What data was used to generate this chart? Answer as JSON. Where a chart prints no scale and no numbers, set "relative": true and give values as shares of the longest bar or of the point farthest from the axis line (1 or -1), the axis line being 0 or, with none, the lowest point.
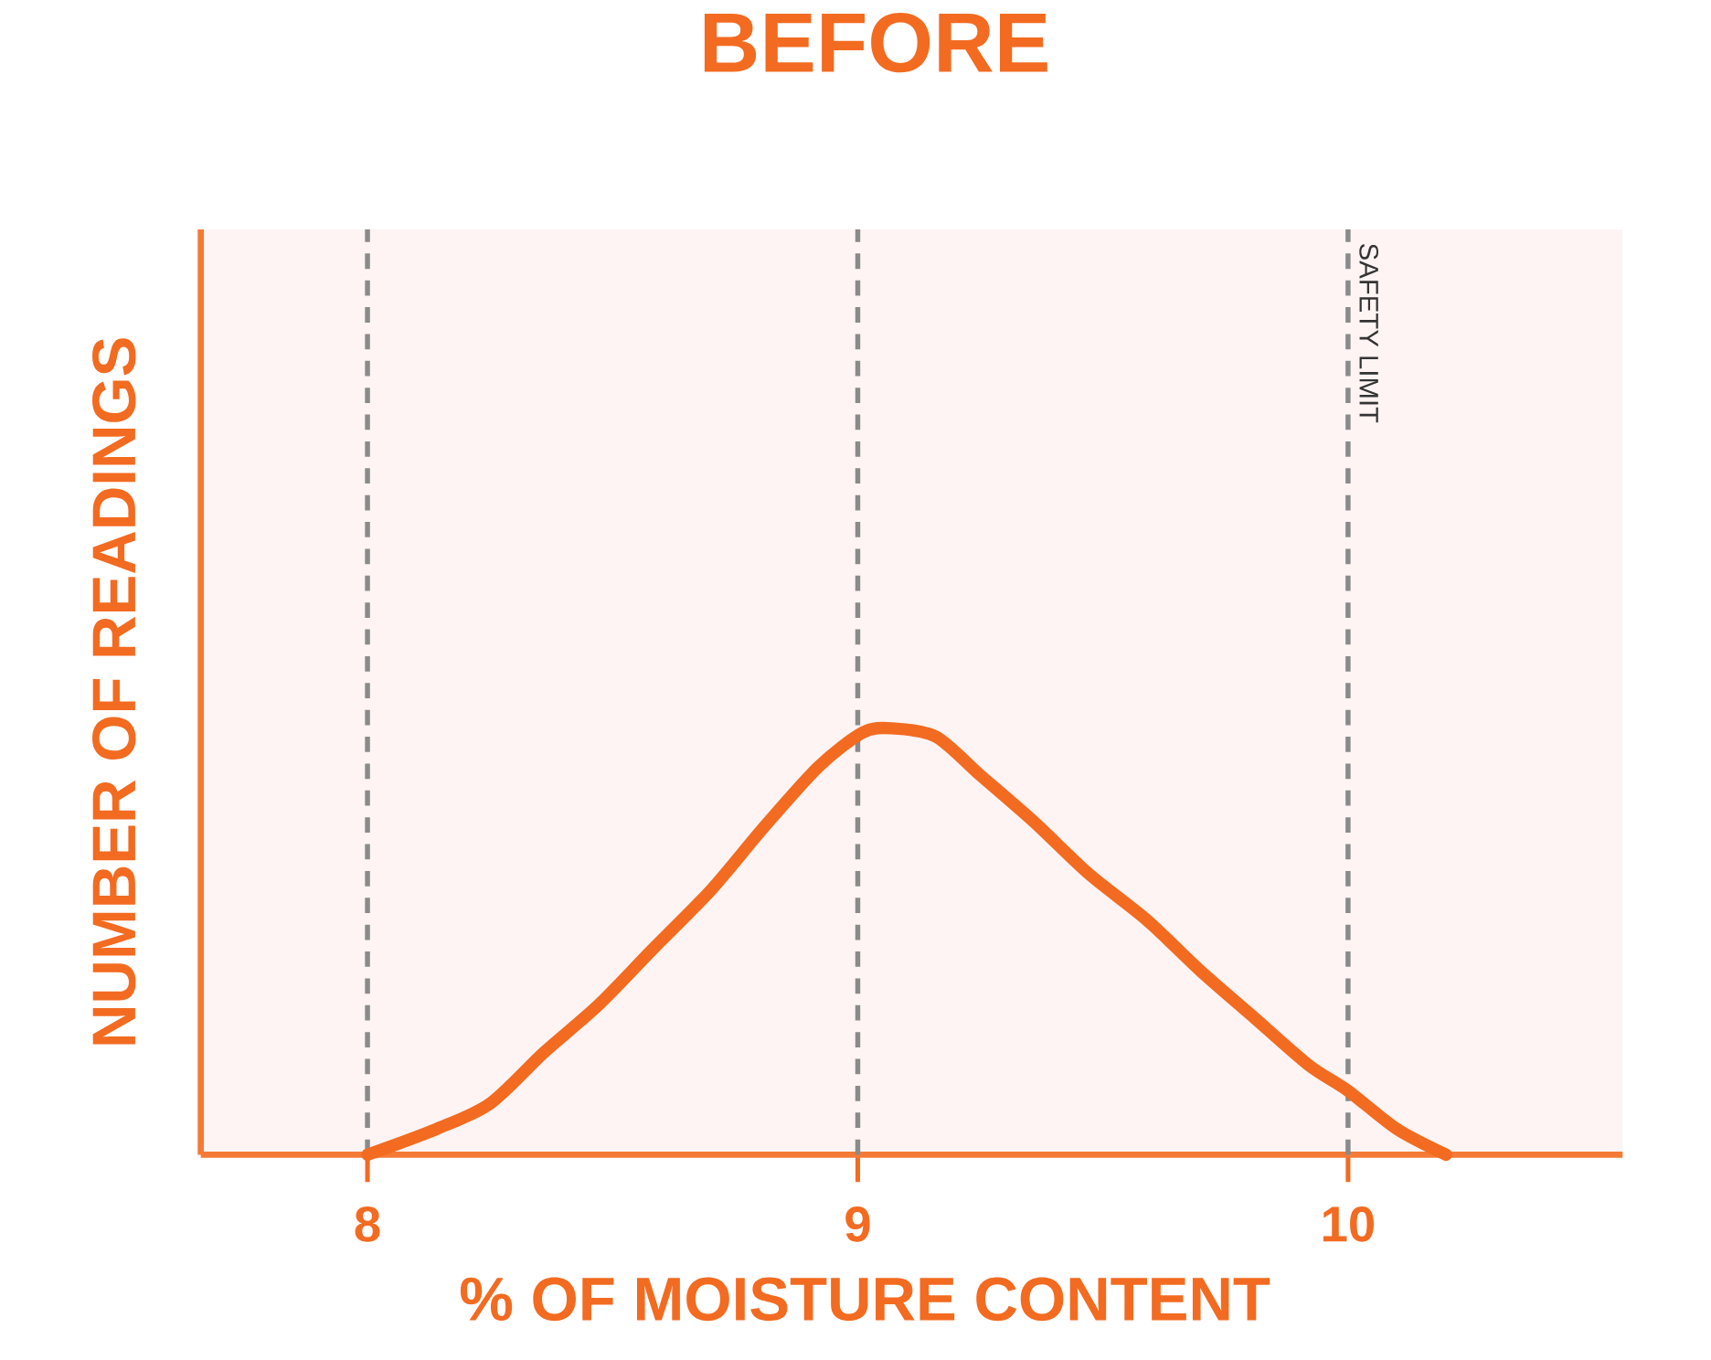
{
  "chart_data": {
    "type": "line",
    "title": "BEFORE",
    "xlabel": "% OF MOISTURE CONTENT",
    "ylabel": "NUMBER OF READINGS",
    "relative": true,
    "x": [
      8.0,
      8.14,
      8.25,
      8.36,
      8.47,
      8.58,
      8.7,
      8.81,
      8.92,
      9.01,
      9.07,
      9.16,
      9.25,
      9.36,
      9.47,
      9.59,
      9.7,
      9.81,
      9.92,
      10.0,
      10.1,
      10.2
    ],
    "series": [
      {
        "color": "#f26b21",
        "values": [
          0,
          0.06,
          0.12,
          0.24,
          0.35,
          0.48,
          0.62,
          0.77,
          0.91,
          0.99,
          1.0,
          0.98,
          0.89,
          0.78,
          0.66,
          0.55,
          0.43,
          0.32,
          0.21,
          0.15,
          0.06,
          0
        ]
      }
    ],
    "xlim": [
      7.66,
      10.56
    ],
    "xticks": [
      8,
      9,
      10
    ],
    "grid": false,
    "marker": "none",
    "line_style": "solid",
    "ref_lines": [
      {
        "axis": "x",
        "value": 8,
        "color": "#8a8a8a",
        "line_style": "dashed"
      },
      {
        "axis": "x",
        "value": 9,
        "color": "#8a8a8a",
        "line_style": "dashed"
      },
      {
        "axis": "x",
        "value": 10,
        "label": "SAFETY LIMIT",
        "color": "#8a8a8a",
        "line_style": "dashed"
      }
    ]
  }
}
